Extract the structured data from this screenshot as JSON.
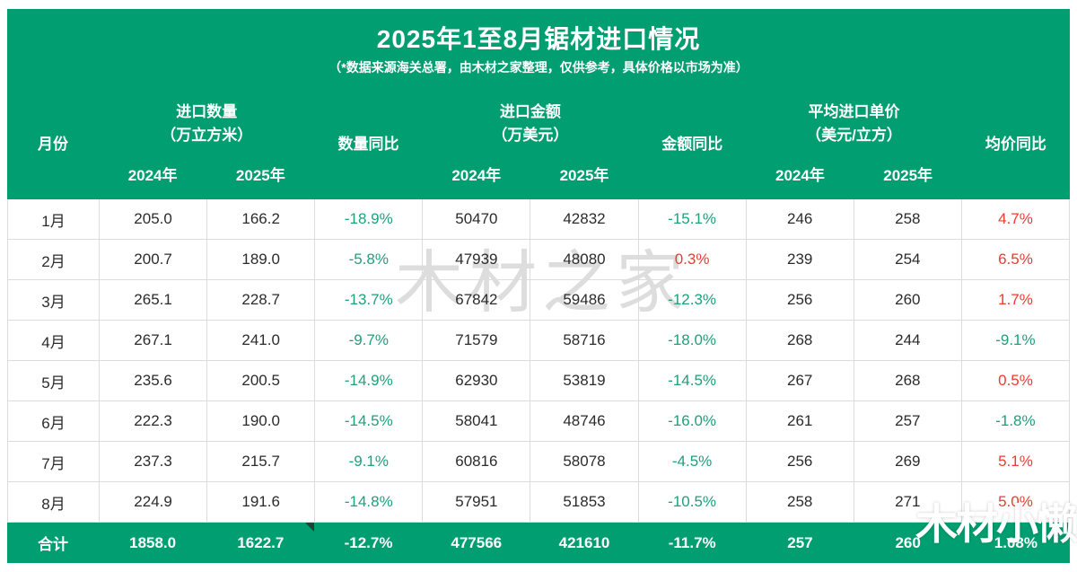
{
  "header": {
    "title": "2025年1至8月锯材进口情况",
    "subtitle": "（*数据来源海关总署，由木材之家整理，仅供参考，具体价格以市场为准）"
  },
  "watermarks": {
    "center": "木材之家",
    "corner": "木材小懒"
  },
  "colors": {
    "panel_green": "#009e70",
    "yoy_down_green": "#1ea07c",
    "yoy_up_red": "#ef3a30",
    "grid_border": "#dcdcdc"
  },
  "table": {
    "headers": {
      "month": "月份",
      "qty_title": "进口数量",
      "qty_unit": "（万立方米）",
      "qty_yoy": "数量同比",
      "amt_title": "进口金额",
      "amt_unit": "（万美元）",
      "amt_yoy": "金额同比",
      "price_title": "平均进口单价",
      "price_unit": "（美元/立方）",
      "price_yoy": "均价同比",
      "years": [
        "2024年",
        "2025年"
      ]
    },
    "rows": [
      {
        "month": "1月",
        "qty_2024": "205.0",
        "qty_2025": "166.2",
        "qty_yoy": "-18.9%",
        "qty_dir": "down",
        "amt_2024": "50470",
        "amt_2025": "42832",
        "amt_yoy": "-15.1%",
        "amt_dir": "down",
        "price_2024": "246",
        "price_2025": "258",
        "price_yoy": "4.7%",
        "price_dir": "up"
      },
      {
        "month": "2月",
        "qty_2024": "200.7",
        "qty_2025": "189.0",
        "qty_yoy": "-5.8%",
        "qty_dir": "down",
        "amt_2024": "47939",
        "amt_2025": "48080",
        "amt_yoy": "0.3%",
        "amt_dir": "up",
        "price_2024": "239",
        "price_2025": "254",
        "price_yoy": "6.5%",
        "price_dir": "up"
      },
      {
        "month": "3月",
        "qty_2024": "265.1",
        "qty_2025": "228.7",
        "qty_yoy": "-13.7%",
        "qty_dir": "down",
        "amt_2024": "67842",
        "amt_2025": "59486",
        "amt_yoy": "-12.3%",
        "amt_dir": "down",
        "price_2024": "256",
        "price_2025": "260",
        "price_yoy": "1.7%",
        "price_dir": "up"
      },
      {
        "month": "4月",
        "qty_2024": "267.1",
        "qty_2025": "241.0",
        "qty_yoy": "-9.7%",
        "qty_dir": "down",
        "amt_2024": "71579",
        "amt_2025": "58716",
        "amt_yoy": "-18.0%",
        "amt_dir": "down",
        "price_2024": "268",
        "price_2025": "244",
        "price_yoy": "-9.1%",
        "price_dir": "down"
      },
      {
        "month": "5月",
        "qty_2024": "235.6",
        "qty_2025": "200.5",
        "qty_yoy": "-14.9%",
        "qty_dir": "down",
        "amt_2024": "62930",
        "amt_2025": "53819",
        "amt_yoy": "-14.5%",
        "amt_dir": "down",
        "price_2024": "267",
        "price_2025": "268",
        "price_yoy": "0.5%",
        "price_dir": "up"
      },
      {
        "month": "6月",
        "qty_2024": "222.3",
        "qty_2025": "190.0",
        "qty_yoy": "-14.5%",
        "qty_dir": "down",
        "amt_2024": "58041",
        "amt_2025": "48746",
        "amt_yoy": "-16.0%",
        "amt_dir": "down",
        "price_2024": "261",
        "price_2025": "257",
        "price_yoy": "-1.8%",
        "price_dir": "down"
      },
      {
        "month": "7月",
        "qty_2024": "237.3",
        "qty_2025": "215.7",
        "qty_yoy": "-9.1%",
        "qty_dir": "down",
        "amt_2024": "60816",
        "amt_2025": "58078",
        "amt_yoy": "-4.5%",
        "amt_dir": "down",
        "price_2024": "256",
        "price_2025": "269",
        "price_yoy": "5.1%",
        "price_dir": "up"
      },
      {
        "month": "8月",
        "qty_2024": "224.9",
        "qty_2025": "191.6",
        "qty_yoy": "-14.8%",
        "qty_dir": "down",
        "amt_2024": "57951",
        "amt_2025": "51853",
        "amt_yoy": "-10.5%",
        "amt_dir": "down",
        "price_2024": "258",
        "price_2025": "271",
        "price_yoy": "5.0%",
        "price_dir": "up"
      }
    ],
    "total": {
      "month": "合计",
      "qty_2024": "1858.0",
      "qty_2025": "1622.7",
      "qty_yoy": "-12.7%",
      "amt_2024": "477566",
      "amt_2025": "421610",
      "amt_yoy": "-11.7%",
      "price_2024": "257",
      "price_2025": "260",
      "price_yoy": "1.08%"
    }
  },
  "chart_data": {
    "type": "table",
    "title": "2025年1至8月锯材进口情况",
    "subtitle": "（*数据来源海关总署，由木材之家整理，仅供参考，具体价格以市场为准）",
    "columns": [
      "月份",
      "进口数量（万立方米）2024年",
      "进口数量（万立方米）2025年",
      "数量同比",
      "进口金额（万美元）2024年",
      "进口金额（万美元）2025年",
      "金额同比",
      "平均进口单价（美元/立方）2024年",
      "平均进口单价（美元/立方）2025年",
      "均价同比"
    ],
    "rows": [
      [
        "1月",
        205.0,
        166.2,
        "-18.9%",
        50470,
        42832,
        "-15.1%",
        246,
        258,
        "4.7%"
      ],
      [
        "2月",
        200.7,
        189.0,
        "-5.8%",
        47939,
        48080,
        "0.3%",
        239,
        254,
        "6.5%"
      ],
      [
        "3月",
        265.1,
        228.7,
        "-13.7%",
        67842,
        59486,
        "-12.3%",
        256,
        260,
        "1.7%"
      ],
      [
        "4月",
        267.1,
        241.0,
        "-9.7%",
        71579,
        58716,
        "-18.0%",
        268,
        244,
        "-9.1%"
      ],
      [
        "5月",
        235.6,
        200.5,
        "-14.9%",
        62930,
        53819,
        "-14.5%",
        267,
        268,
        "0.5%"
      ],
      [
        "6月",
        222.3,
        190.0,
        "-14.5%",
        58041,
        48746,
        "-16.0%",
        261,
        257,
        "-1.8%"
      ],
      [
        "7月",
        237.3,
        215.7,
        "-9.1%",
        60816,
        58078,
        "-4.5%",
        256,
        269,
        "5.1%"
      ],
      [
        "8月",
        224.9,
        191.6,
        "-14.8%",
        57951,
        51853,
        "-10.5%",
        258,
        271,
        "5.0%"
      ],
      [
        "合计",
        1858.0,
        1622.7,
        "-12.7%",
        477566,
        421610,
        "-11.7%",
        257,
        260,
        "1.08%"
      ]
    ]
  }
}
